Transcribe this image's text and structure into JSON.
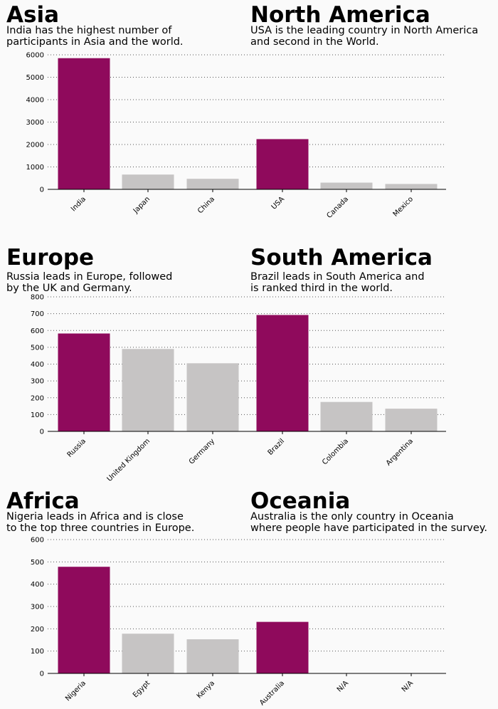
{
  "colors": {
    "highlight": "#8f0a5c",
    "other": "#c6c4c4",
    "background": "#fafafa",
    "grid": "#555555"
  },
  "panels": [
    {
      "title": "Asia",
      "subtitle": "India has the highest number of\nparticipants in Asia and the world."
    },
    {
      "title": "North America",
      "subtitle": "USA is the leading country in North America\nand second in the World."
    },
    {
      "title": "Europe",
      "subtitle": "Russia leads in Europe, followed\nby the UK and Germany."
    },
    {
      "title": "South America",
      "subtitle": "Brazil leads in South America and\nis ranked third in the world."
    },
    {
      "title": "Africa",
      "subtitle": "Nigeria leads in Africa and is close\nto the top three countries in Europe."
    },
    {
      "title": "Oceania",
      "subtitle": "Australia is the only country in Oceania\nwhere people have participated in the survey."
    }
  ],
  "chart_data": [
    {
      "type": "bar",
      "categories": [
        "India",
        "Japan",
        "China",
        "USA",
        "Canada",
        "Mexico"
      ],
      "values": [
        5850,
        660,
        470,
        2240,
        300,
        240
      ],
      "highlight": [
        true,
        false,
        false,
        true,
        false,
        false
      ],
      "ylim": [
        0,
        6000
      ],
      "yticks": [
        0,
        1000,
        2000,
        3000,
        4000,
        5000,
        6000
      ],
      "grid": "horizontal dotted"
    },
    {
      "type": "bar",
      "categories": [
        "Russia",
        "United Kingdom",
        "Germany",
        "Brazil",
        "Colombia",
        "Argentina"
      ],
      "values": [
        582,
        490,
        405,
        692,
        175,
        135
      ],
      "highlight": [
        true,
        false,
        false,
        true,
        false,
        false
      ],
      "ylim": [
        0,
        800
      ],
      "yticks": [
        0,
        100,
        200,
        300,
        400,
        500,
        600,
        700,
        800
      ],
      "grid": "horizontal dotted"
    },
    {
      "type": "bar",
      "categories": [
        "Nigeria",
        "Egypt",
        "Kenya",
        "Australia",
        "N/A",
        "N/A"
      ],
      "values": [
        478,
        178,
        153,
        231,
        0,
        0
      ],
      "highlight": [
        true,
        false,
        false,
        true,
        false,
        false
      ],
      "ylim": [
        0,
        600
      ],
      "yticks": [
        0,
        100,
        200,
        300,
        400,
        500,
        600
      ],
      "grid": "horizontal dotted"
    }
  ]
}
